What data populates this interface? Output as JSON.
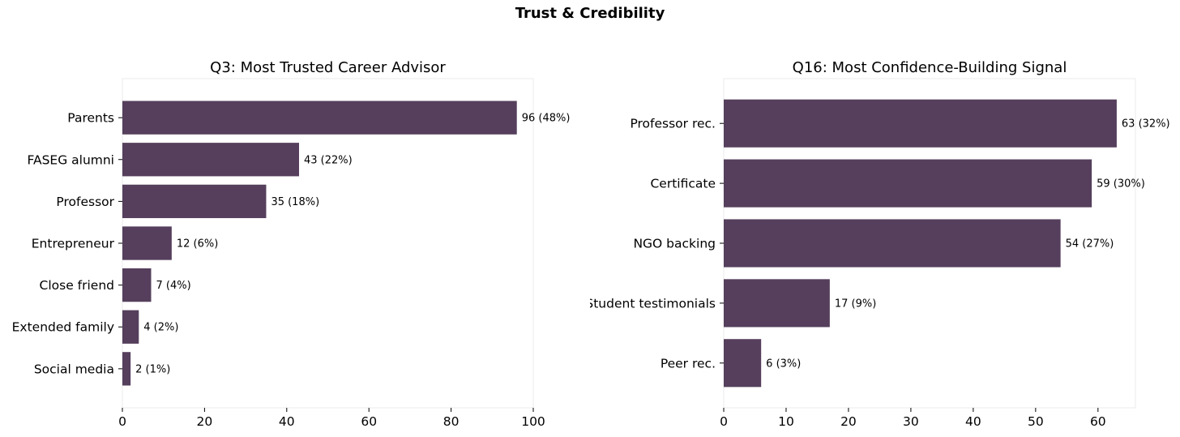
{
  "figure_title": "Trust & Credibility",
  "colors": {
    "bar": "#553f5c",
    "axes_frame": "#ebebeb",
    "tick": "#000000"
  },
  "chart_data": [
    {
      "type": "bar",
      "orientation": "horizontal",
      "title": "Q3: Most Trusted Career Advisor",
      "xlabel": "",
      "ylabel": "",
      "categories": [
        "Parents",
        "FASEG alumni",
        "Professor",
        "Entrepreneur",
        "Close friend",
        "Extended family",
        "Social media"
      ],
      "values": [
        96,
        43,
        35,
        12,
        7,
        4,
        2
      ],
      "data_labels": [
        "96 (48%)",
        "43 (22%)",
        "35 (18%)",
        "12 (6%)",
        "7 (4%)",
        "4 (2%)",
        "2 (1%)"
      ],
      "xlim": [
        0,
        100
      ],
      "xticks": [
        0,
        20,
        40,
        60,
        80,
        100
      ],
      "grid": false,
      "legend": "none"
    },
    {
      "type": "bar",
      "orientation": "horizontal",
      "title": "Q16: Most Confidence-Building Signal",
      "xlabel": "",
      "ylabel": "",
      "categories": [
        "Professor rec.",
        "Certificate",
        "NGO backing",
        "Student testimonials",
        "Peer rec."
      ],
      "values": [
        63,
        59,
        54,
        17,
        6
      ],
      "data_labels": [
        "63 (32%)",
        "59 (30%)",
        "54 (27%)",
        "17 (9%)",
        "6 (3%)"
      ],
      "xlim": [
        0,
        66
      ],
      "xticks": [
        0,
        10,
        20,
        30,
        40,
        50,
        60
      ],
      "grid": false,
      "legend": "none"
    }
  ]
}
